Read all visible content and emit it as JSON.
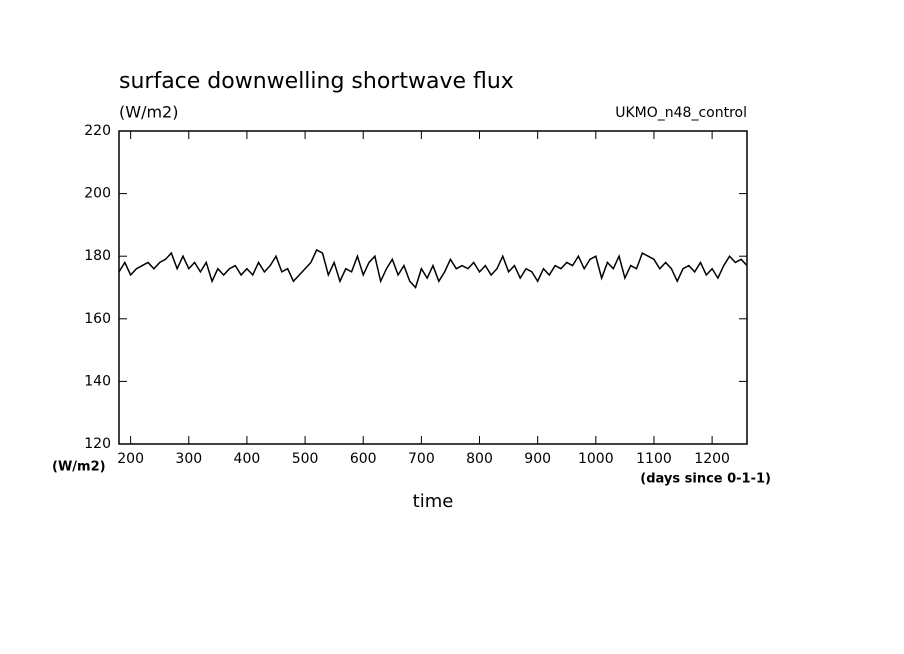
{
  "chart_data": {
    "type": "line",
    "title": "surface downwelling shortwave flux",
    "subtitle": "(W/m2)",
    "annotation": "UKMO_n48_control",
    "y_axis_label": "(W/m2)",
    "x_axis_units": "(days since 0-1-1)",
    "x_axis_label": "time",
    "x": [
      180,
      190,
      200,
      210,
      220,
      230,
      240,
      250,
      260,
      270,
      280,
      290,
      300,
      310,
      320,
      330,
      340,
      350,
      360,
      370,
      380,
      390,
      400,
      410,
      420,
      430,
      440,
      450,
      460,
      470,
      480,
      490,
      500,
      510,
      520,
      530,
      540,
      550,
      560,
      570,
      580,
      590,
      600,
      610,
      620,
      630,
      640,
      650,
      660,
      670,
      680,
      690,
      700,
      710,
      720,
      730,
      740,
      750,
      760,
      770,
      780,
      790,
      800,
      810,
      820,
      830,
      840,
      850,
      860,
      870,
      880,
      890,
      900,
      910,
      920,
      930,
      940,
      950,
      960,
      970,
      980,
      990,
      1000,
      1010,
      1020,
      1030,
      1040,
      1050,
      1060,
      1070,
      1080,
      1090,
      1100,
      1110,
      1120,
      1130,
      1140,
      1150,
      1160,
      1170,
      1180,
      1190,
      1200,
      1210,
      1220,
      1230,
      1240,
      1250,
      1260
    ],
    "series": [
      {
        "color": "#000000",
        "values": [
          175,
          178,
          174,
          176,
          177,
          178,
          176,
          178,
          179,
          181,
          176,
          180,
          176,
          178,
          175,
          178,
          172,
          176,
          174,
          176,
          177,
          174,
          176,
          174,
          178,
          175,
          177,
          180,
          175,
          176,
          172,
          174,
          176,
          178,
          182,
          181,
          174,
          178,
          172,
          176,
          175,
          180,
          174,
          178,
          180,
          172,
          176,
          179,
          174,
          177,
          172,
          170,
          176,
          173,
          177,
          172,
          175,
          179,
          176,
          177,
          176,
          178,
          175,
          177,
          174,
          176,
          180,
          175,
          177,
          173,
          176,
          175,
          172,
          176,
          174,
          177,
          176,
          178,
          177,
          180,
          176,
          179,
          180,
          173,
          178,
          176,
          180,
          173,
          177,
          176,
          181,
          180,
          179,
          176,
          178,
          176,
          172,
          176,
          177,
          175,
          178,
          174,
          176,
          173,
          177,
          180,
          178,
          179,
          177
        ]
      }
    ],
    "xlim": [
      180,
      1260
    ],
    "ylim": [
      120,
      220
    ],
    "xticks": [
      200,
      300,
      400,
      500,
      600,
      700,
      800,
      900,
      1000,
      1100,
      1200
    ],
    "yticks": [
      120,
      140,
      160,
      180,
      200,
      220
    ]
  }
}
